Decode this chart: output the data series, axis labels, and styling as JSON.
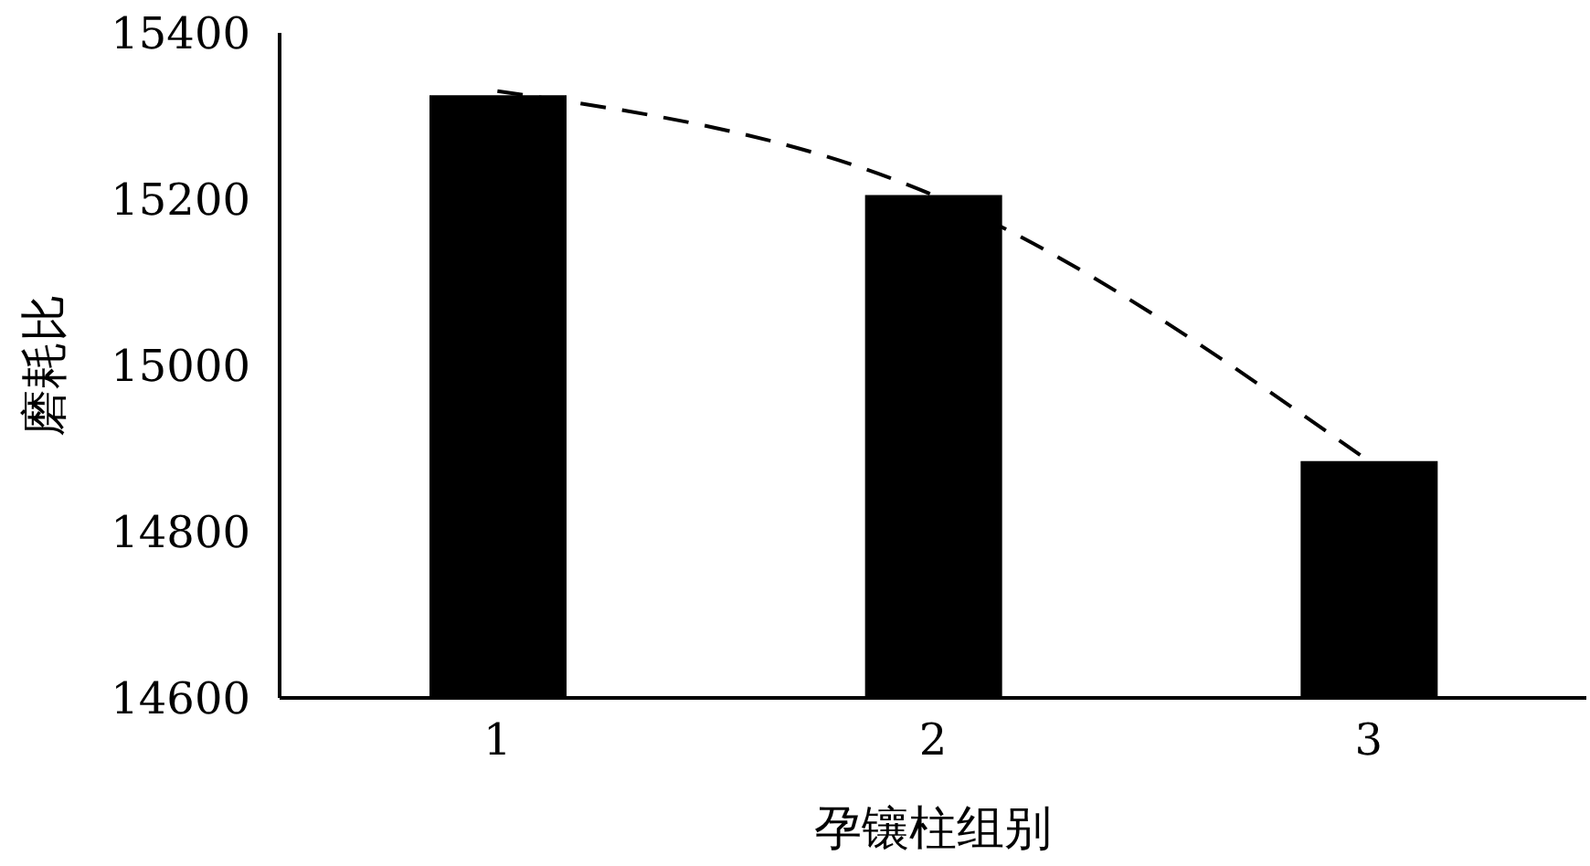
{
  "chart_data": {
    "type": "bar",
    "xlabel": "孕镶柱组别",
    "ylabel": "磨耗比",
    "categories": [
      "1",
      "2",
      "3"
    ],
    "series": [
      {
        "color": "#000000",
        "values": [
          15325,
          15205,
          14885
        ]
      },
      {
        "type": "line",
        "color": "#000000",
        "x": [
          "1",
          "2",
          "3"
        ],
        "values": [
          15330,
          15205,
          14885
        ],
        "line_style": "dashed",
        "marker": "none"
      }
    ],
    "ylim": [
      14600,
      15400
    ],
    "yticks": [
      14600,
      14800,
      15000,
      15200,
      15400
    ],
    "legend": false
  }
}
